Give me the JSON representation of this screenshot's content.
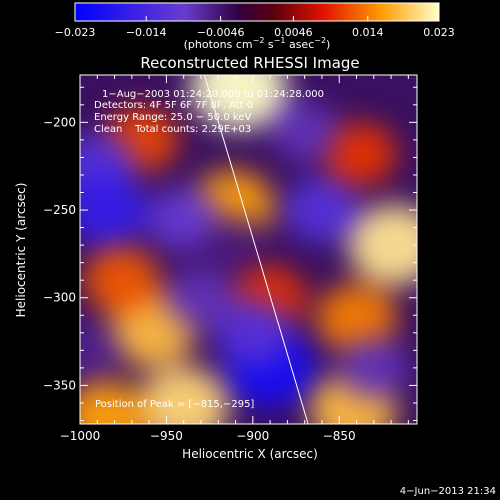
{
  "chart_data": {
    "type": "heatmap",
    "title": "Reconstructed RHESSI Image",
    "xlabel": "Heliocentric X (arcsec)",
    "ylabel": "Heliocentric Y (arcsec)",
    "xlim": [
      -1000,
      -805
    ],
    "ylim": [
      -372,
      -173
    ],
    "x_ticks": [
      -1000,
      -950,
      -900,
      -850
    ],
    "x_tick_labels": [
      "−1000",
      "−950",
      "−900",
      "−850"
    ],
    "y_ticks": [
      -200,
      -250,
      -300,
      -350
    ],
    "y_tick_labels": [
      "−200",
      "−250",
      "−300",
      "−350"
    ],
    "colorbar": {
      "range": [
        -0.023,
        0.023
      ],
      "ticks": [
        -0.023,
        -0.014,
        -0.0046,
        0.0046,
        0.014,
        0.023
      ],
      "tick_labels": [
        "−0.023",
        "−0.014",
        "−0.0046",
        "0.0046",
        "0.014",
        "0.023"
      ],
      "units_label": "(photons cm",
      "units_exp1": "−2",
      "units_mid": " s",
      "units_exp2": "−1",
      "units_mid2": " asec",
      "units_exp3": "−2",
      "units_end": ")"
    },
    "annotations": {
      "time": "1−Aug−2003 01:24:20.000 to 01:24:28.000",
      "detectors": "Detectors: 4F 5F 6F 7F 8F, Att 0",
      "energy": "Energy Range: 25.0 − 50.0 keV",
      "clean": "Clean    Total counts: 2.29E+03",
      "peak": "Position of Peak = [−815,−295]"
    },
    "peak_position": [
      -815,
      -295
    ],
    "limb_line": [
      [
        -928,
        -173
      ],
      [
        -868,
        -372
      ]
    ],
    "sources": [
      {
        "x": -912,
        "y": -248,
        "value": 0.016
      },
      {
        "x": -908,
        "y": -180,
        "value": 0.023
      },
      {
        "x": -965,
        "y": -210,
        "value": 0.011
      },
      {
        "x": -958,
        "y": -318,
        "value": 0.018
      },
      {
        "x": -976,
        "y": -290,
        "value": 0.012
      },
      {
        "x": -890,
        "y": -300,
        "value": 0.01
      },
      {
        "x": -940,
        "y": -362,
        "value": 0.02
      },
      {
        "x": -985,
        "y": -368,
        "value": 0.016
      },
      {
        "x": -840,
        "y": -312,
        "value": 0.014
      },
      {
        "x": -818,
        "y": -270,
        "value": 0.021
      },
      {
        "x": -842,
        "y": -364,
        "value": 0.018
      },
      {
        "x": -838,
        "y": -218,
        "value": 0.01
      },
      {
        "x": -990,
        "y": -225,
        "value": -0.012
      },
      {
        "x": -985,
        "y": -250,
        "value": -0.016
      },
      {
        "x": -940,
        "y": -255,
        "value": -0.01
      },
      {
        "x": -890,
        "y": -340,
        "value": -0.02
      },
      {
        "x": -900,
        "y": -320,
        "value": -0.012
      },
      {
        "x": -860,
        "y": -250,
        "value": -0.012
      },
      {
        "x": -870,
        "y": -205,
        "value": -0.008
      },
      {
        "x": -910,
        "y": -270,
        "value": -0.005
      },
      {
        "x": -930,
        "y": -300,
        "value": -0.008
      },
      {
        "x": -995,
        "y": -330,
        "value": -0.006
      },
      {
        "x": -830,
        "y": -340,
        "value": -0.008
      }
    ]
  },
  "footer": {
    "date": "4−Jun−2013 21:34"
  }
}
